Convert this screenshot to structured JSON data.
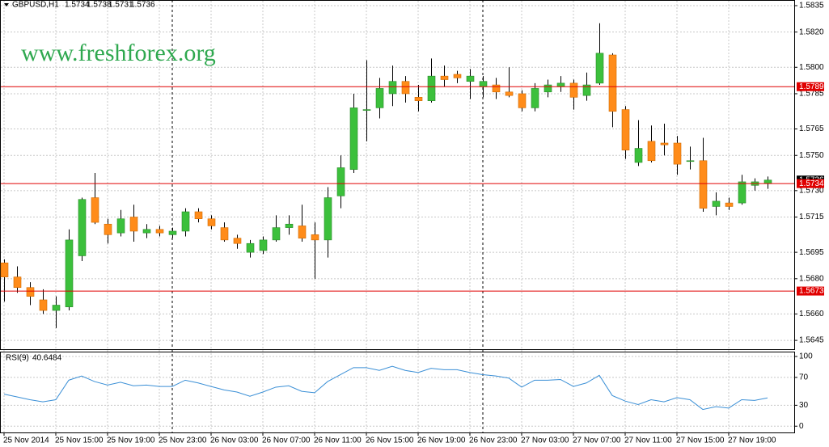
{
  "chart_data": [
    {
      "type": "candlestick",
      "symbol": "GBPUSD,H1",
      "watermark": "www.freshforex.org",
      "categories": [
        "25 Nov 2014",
        null,
        null,
        null,
        "25 Nov 15:00",
        null,
        null,
        null,
        "25 Nov 19:00",
        null,
        null,
        null,
        "25 Nov 23:00",
        null,
        null,
        null,
        "26 Nov 03:00",
        null,
        null,
        null,
        "26 Nov 07:00",
        null,
        null,
        null,
        "26 Nov 11:00",
        null,
        null,
        null,
        "26 Nov 15:00",
        null,
        null,
        null,
        "26 Nov 19:00",
        null,
        null,
        null,
        "26 Nov 23:00",
        null,
        null,
        null,
        "27 Nov 03:00",
        null,
        null,
        null,
        "27 Nov 07:00",
        null,
        null,
        null,
        "27 Nov 11:00",
        null,
        null,
        null,
        "27 Nov 15:00",
        null,
        null,
        null,
        "27 Nov 19:00",
        null,
        null,
        null
      ],
      "open": [
        1.5689,
        1.5681,
        1.5675,
        1.5668,
        1.5662,
        1.5664,
        1.5693,
        1.5726,
        1.5711,
        1.5706,
        1.5715,
        1.5706,
        1.5708,
        1.5705,
        1.5707,
        1.5718,
        1.5714,
        1.5709,
        1.5703,
        1.5695,
        1.5696,
        1.5702,
        1.5709,
        1.571,
        1.5705,
        1.5702,
        1.5727,
        1.5742,
        1.5776,
        1.5777,
        1.5785,
        1.5792,
        1.5783,
        1.5781,
        1.5795,
        1.5796,
        1.5792,
        1.5789,
        1.579,
        1.5786,
        1.5785,
        1.5777,
        1.5786,
        1.5789,
        1.5791,
        1.5784,
        1.5791,
        1.5807,
        1.5776,
        1.5746,
        1.5758,
        1.5757,
        1.5757,
        1.5747,
        1.5747,
        1.5721,
        1.5723,
        1.5723,
        1.5733,
        1.5734
      ],
      "high": [
        1.5691,
        1.5687,
        1.5678,
        1.5674,
        1.567,
        1.5708,
        1.5726,
        1.574,
        1.5714,
        1.5719,
        1.5722,
        1.5711,
        1.571,
        1.5709,
        1.572,
        1.572,
        1.5716,
        1.5712,
        1.5705,
        1.5702,
        1.5704,
        1.5716,
        1.5716,
        1.5722,
        1.5712,
        1.5732,
        1.575,
        1.5785,
        1.5804,
        1.5794,
        1.5801,
        1.5795,
        1.579,
        1.5805,
        1.5801,
        1.5798,
        1.5799,
        1.5795,
        1.5794,
        1.58,
        1.5787,
        1.5791,
        1.5793,
        1.5795,
        1.5793,
        1.5797,
        1.5825,
        1.5808,
        1.5778,
        1.577,
        1.5767,
        1.5768,
        1.5761,
        1.5755,
        1.576,
        1.5729,
        1.5726,
        1.5739,
        1.5737,
        1.5738
      ],
      "low": [
        1.5667,
        1.5672,
        1.5665,
        1.566,
        1.5652,
        1.5662,
        1.569,
        1.5711,
        1.57,
        1.5704,
        1.5701,
        1.5703,
        1.5704,
        1.5703,
        1.5704,
        1.5712,
        1.5708,
        1.5701,
        1.5697,
        1.5692,
        1.5694,
        1.5701,
        1.5705,
        1.5701,
        1.568,
        1.5692,
        1.572,
        1.574,
        1.5758,
        1.5771,
        1.5778,
        1.578,
        1.5775,
        1.578,
        1.5789,
        1.5791,
        1.5782,
        1.5783,
        1.5782,
        1.5783,
        1.5775,
        1.5775,
        1.5783,
        1.5786,
        1.5776,
        1.5781,
        1.579,
        1.5766,
        1.5748,
        1.5744,
        1.5746,
        1.575,
        1.5739,
        1.5742,
        1.5718,
        1.5716,
        1.5719,
        1.5722,
        1.573,
        1.5731
      ],
      "close": [
        1.5681,
        1.5675,
        1.567,
        1.5662,
        1.5665,
        1.5702,
        1.5725,
        1.5712,
        1.5705,
        1.5714,
        1.5707,
        1.5708,
        1.5706,
        1.5707,
        1.5718,
        1.5714,
        1.571,
        1.5702,
        1.57,
        1.57,
        1.5702,
        1.5709,
        1.5711,
        1.5703,
        1.5702,
        1.5726,
        1.5743,
        1.5777,
        1.5776,
        1.5788,
        1.5792,
        1.5785,
        1.5781,
        1.5795,
        1.5793,
        1.5794,
        1.5795,
        1.5792,
        1.5786,
        1.5784,
        1.5777,
        1.5788,
        1.579,
        1.5791,
        1.5783,
        1.579,
        1.5808,
        1.5775,
        1.5753,
        1.5754,
        1.5747,
        1.5756,
        1.5745,
        1.5747,
        1.572,
        1.5724,
        1.5721,
        1.5735,
        1.5735,
        1.5736
      ],
      "up_color": "#3cc03c",
      "down_color": "#ff8c1a",
      "level_color": "#e00000",
      "levels": [
        1.5789,
        1.5734,
        1.5673
      ],
      "ylim": [
        1.564,
        1.58382
      ],
      "yticks": [
        1.5835,
        {
          "value": 1.582,
          "label": "1.5820"
        },
        {
          "value": 1.58,
          "label": "1.5800"
        },
        1.5785,
        1.5765,
        {
          "value": 1.575,
          "label": "1.5750"
        },
        {
          "value": 1.573,
          "label": "1.5730"
        },
        1.5715,
        1.5695,
        {
          "value": 1.568,
          "label": "1.5680"
        },
        {
          "value": 1.566,
          "label": "1.5660"
        },
        1.5645
      ],
      "grid": true
    },
    {
      "type": "line",
      "name": "RSI(9)",
      "color": "#3a8fd6",
      "values": [
        46,
        42,
        38,
        35,
        38,
        66,
        72,
        64,
        59,
        63,
        58,
        59,
        57,
        57,
        66,
        62,
        57,
        52,
        49,
        43,
        49,
        56,
        58,
        50,
        48,
        64,
        74,
        84,
        84,
        80,
        86,
        80,
        77,
        83,
        81,
        81,
        77,
        74,
        72,
        69,
        56,
        66,
        66,
        67,
        57,
        62,
        73,
        44,
        36,
        31,
        38,
        35,
        41,
        38,
        24,
        28,
        26,
        38,
        37,
        40.6484
      ],
      "ylim": [
        -9,
        107
      ],
      "yticks": [
        100,
        70,
        30,
        0
      ]
    }
  ]
}
